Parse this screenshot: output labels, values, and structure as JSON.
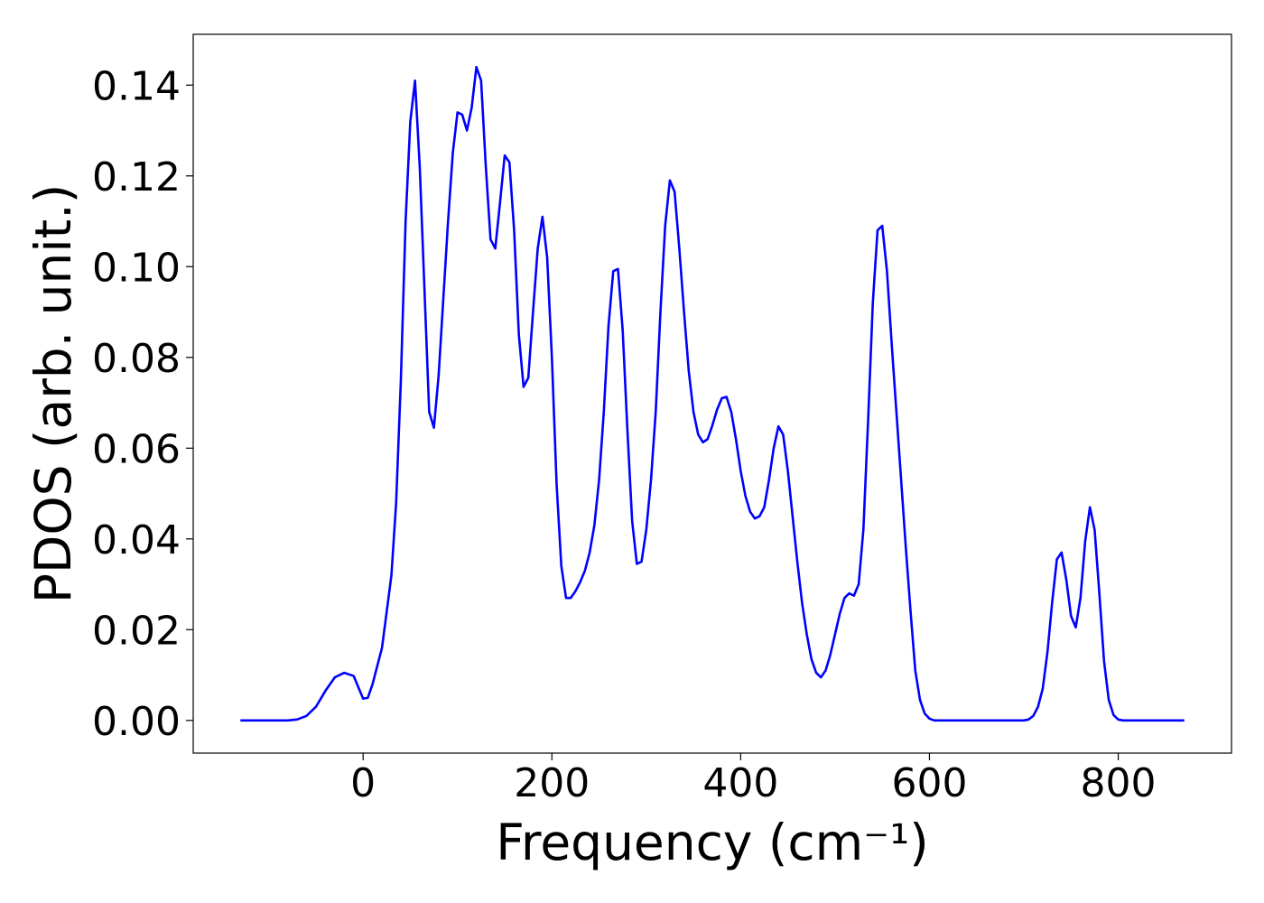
{
  "chart_data": {
    "type": "line",
    "xlabel": "Frequency (cm⁻¹)",
    "ylabel": "PDOS (arb. unit.)",
    "xlim": [
      -180,
      920
    ],
    "ylim": [
      -0.0072,
      0.1512
    ],
    "xticks": [
      0,
      200,
      400,
      600,
      800
    ],
    "yticks": [
      {
        "value": 0,
        "label": "0.00"
      },
      {
        "value": 0.02,
        "label": "0.02"
      },
      {
        "value": 0.04,
        "label": "0.04"
      },
      {
        "value": 0.06,
        "label": "0.06"
      },
      {
        "value": 0.08,
        "label": "0.08"
      },
      {
        "value": 0.1,
        "label": "0.10"
      },
      {
        "value": 0.12,
        "label": "0.12"
      },
      {
        "value": 0.14,
        "label": "0.14"
      }
    ],
    "x": [
      -130,
      -80,
      -70,
      -60,
      -50,
      -40,
      -30,
      -20,
      -10,
      0,
      5,
      10,
      20,
      30,
      35,
      40,
      45,
      50,
      55,
      60,
      65,
      70,
      75,
      80,
      90,
      95,
      100,
      105,
      110,
      115,
      120,
      125,
      130,
      135,
      140,
      145,
      150,
      155,
      160,
      165,
      170,
      175,
      180,
      185,
      190,
      195,
      200,
      205,
      210,
      215,
      220,
      225,
      230,
      235,
      240,
      245,
      250,
      255,
      260,
      265,
      270,
      275,
      280,
      285,
      290,
      295,
      300,
      305,
      310,
      315,
      320,
      325,
      330,
      335,
      340,
      345,
      350,
      355,
      360,
      365,
      370,
      375,
      380,
      385,
      390,
      395,
      400,
      405,
      410,
      415,
      420,
      425,
      430,
      435,
      440,
      445,
      450,
      455,
      460,
      465,
      470,
      475,
      480,
      485,
      490,
      495,
      500,
      505,
      510,
      515,
      520,
      525,
      530,
      535,
      540,
      545,
      550,
      555,
      560,
      565,
      570,
      575,
      580,
      585,
      590,
      595,
      600,
      605,
      700,
      705,
      710,
      715,
      720,
      725,
      730,
      735,
      740,
      745,
      750,
      755,
      760,
      765,
      770,
      775,
      780,
      785,
      790,
      795,
      800,
      805,
      870
    ],
    "series": [
      {
        "name": "PDOS",
        "color": "#0000ff",
        "values": [
          0,
          0,
          0.0002,
          0.001,
          0.003,
          0.0065,
          0.0095,
          0.0105,
          0.0098,
          0.0048,
          0.005,
          0.008,
          0.016,
          0.032,
          0.048,
          0.075,
          0.11,
          0.132,
          0.141,
          0.122,
          0.095,
          0.068,
          0.0645,
          0.076,
          0.11,
          0.125,
          0.134,
          0.1335,
          0.13,
          0.135,
          0.144,
          0.141,
          0.122,
          0.106,
          0.104,
          0.114,
          0.1245,
          0.123,
          0.108,
          0.085,
          0.0735,
          0.0755,
          0.09,
          0.104,
          0.111,
          0.102,
          0.08,
          0.052,
          0.034,
          0.027,
          0.027,
          0.0285,
          0.0305,
          0.033,
          0.037,
          0.043,
          0.053,
          0.068,
          0.087,
          0.099,
          0.0995,
          0.086,
          0.064,
          0.044,
          0.0345,
          0.035,
          0.042,
          0.053,
          0.068,
          0.09,
          0.109,
          0.119,
          0.1165,
          0.104,
          0.09,
          0.077,
          0.068,
          0.063,
          0.0613,
          0.062,
          0.065,
          0.0685,
          0.071,
          0.0713,
          0.068,
          0.062,
          0.055,
          0.0495,
          0.046,
          0.0445,
          0.045,
          0.047,
          0.053,
          0.06,
          0.0648,
          0.063,
          0.055,
          0.045,
          0.035,
          0.026,
          0.019,
          0.0135,
          0.0105,
          0.0095,
          0.011,
          0.0145,
          0.019,
          0.0235,
          0.027,
          0.028,
          0.0275,
          0.03,
          0.042,
          0.066,
          0.092,
          0.108,
          0.109,
          0.099,
          0.083,
          0.068,
          0.053,
          0.038,
          0.024,
          0.011,
          0.0045,
          0.0015,
          0.0004,
          0,
          0,
          0.0002,
          0.001,
          0.003,
          0.007,
          0.015,
          0.026,
          0.0355,
          0.037,
          0.031,
          0.023,
          0.0205,
          0.027,
          0.0395,
          0.047,
          0.042,
          0.028,
          0.013,
          0.0045,
          0.0012,
          0.0002,
          0,
          0
        ]
      }
    ]
  }
}
